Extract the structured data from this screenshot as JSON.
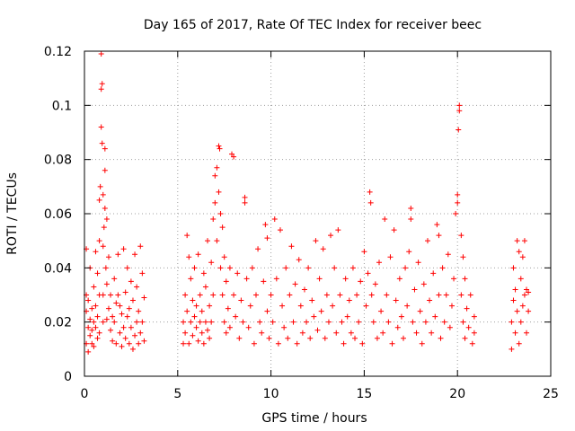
{
  "chart_data": {
    "type": "scatter",
    "title": "Day 165 of 2017, Rate Of TEC Index for receiver beec",
    "xlabel": "GPS time / hours",
    "ylabel": "ROTI / TECUs",
    "xlim": [
      0,
      25
    ],
    "ylim": [
      0,
      0.12
    ],
    "xticks": [
      0,
      5,
      10,
      15,
      20,
      25
    ],
    "xtick_labels": [
      "0",
      "5",
      "10",
      "15",
      "20",
      "25"
    ],
    "yticks": [
      0,
      0.02,
      0.04,
      0.06,
      0.08,
      0.1,
      0.12
    ],
    "ytick_labels": [
      "0",
      "0.02",
      "0.04",
      "0.06",
      "0.08",
      "0.1",
      "0.12"
    ],
    "grid": true,
    "marker": "+",
    "series": [
      {
        "name": "ROTI",
        "color": "#ff0000",
        "points": [
          [
            0.1,
            0.024
          ],
          [
            0.1,
            0.012
          ],
          [
            0.1,
            0.03
          ],
          [
            0.1,
            0.047
          ],
          [
            0.2,
            0.018
          ],
          [
            0.2,
            0.009
          ],
          [
            0.2,
            0.028
          ],
          [
            0.3,
            0.015
          ],
          [
            0.3,
            0.021
          ],
          [
            0.3,
            0.04
          ],
          [
            0.4,
            0.012
          ],
          [
            0.4,
            0.025
          ],
          [
            0.4,
            0.017
          ],
          [
            0.5,
            0.02
          ],
          [
            0.5,
            0.033
          ],
          [
            0.5,
            0.011
          ],
          [
            0.6,
            0.018
          ],
          [
            0.6,
            0.026
          ],
          [
            0.6,
            0.046
          ],
          [
            0.7,
            0.014
          ],
          [
            0.7,
            0.038
          ],
          [
            0.7,
            0.022
          ],
          [
            0.8,
            0.05
          ],
          [
            0.8,
            0.03
          ],
          [
            0.8,
            0.016
          ],
          [
            0.8,
            0.065
          ],
          [
            0.85,
            0.07
          ],
          [
            0.9,
            0.119
          ],
          [
            0.9,
            0.106
          ],
          [
            0.9,
            0.092
          ],
          [
            0.95,
            0.086
          ],
          [
            0.95,
            0.108
          ],
          [
            1.0,
            0.067
          ],
          [
            1.0,
            0.048
          ],
          [
            1.0,
            0.03
          ],
          [
            1.0,
            0.02
          ],
          [
            1.05,
            0.055
          ],
          [
            1.1,
            0.084
          ],
          [
            1.1,
            0.076
          ],
          [
            1.1,
            0.062
          ],
          [
            1.15,
            0.04
          ],
          [
            1.2,
            0.034
          ],
          [
            1.2,
            0.021
          ],
          [
            1.2,
            0.058
          ],
          [
            1.3,
            0.025
          ],
          [
            1.3,
            0.044
          ],
          [
            1.4,
            0.017
          ],
          [
            1.4,
            0.03
          ],
          [
            1.5,
            0.022
          ],
          [
            1.5,
            0.013
          ],
          [
            1.6,
            0.02
          ],
          [
            1.6,
            0.036
          ],
          [
            1.7,
            0.027
          ],
          [
            1.7,
            0.012
          ],
          [
            1.8,
            0.03
          ],
          [
            1.8,
            0.045
          ],
          [
            1.9,
            0.016
          ],
          [
            1.9,
            0.026
          ],
          [
            2.0,
            0.011
          ],
          [
            2.0,
            0.023
          ],
          [
            2.1,
            0.047
          ],
          [
            2.1,
            0.018
          ],
          [
            2.2,
            0.014
          ],
          [
            2.2,
            0.031
          ],
          [
            2.3,
            0.022
          ],
          [
            2.3,
            0.04
          ],
          [
            2.4,
            0.012
          ],
          [
            2.4,
            0.025
          ],
          [
            2.5,
            0.018
          ],
          [
            2.5,
            0.035
          ],
          [
            2.6,
            0.01
          ],
          [
            2.6,
            0.028
          ],
          [
            2.7,
            0.015
          ],
          [
            2.7,
            0.045
          ],
          [
            2.8,
            0.02
          ],
          [
            2.8,
            0.033
          ],
          [
            2.9,
            0.012
          ],
          [
            2.9,
            0.024
          ],
          [
            3.0,
            0.016
          ],
          [
            3.0,
            0.048
          ],
          [
            3.1,
            0.02
          ],
          [
            3.1,
            0.038
          ],
          [
            3.2,
            0.013
          ],
          [
            3.2,
            0.029
          ],
          [
            5.3,
            0.012
          ],
          [
            5.3,
            0.02
          ],
          [
            5.4,
            0.03
          ],
          [
            5.4,
            0.016
          ],
          [
            5.5,
            0.052
          ],
          [
            5.5,
            0.024
          ],
          [
            5.6,
            0.044
          ],
          [
            5.6,
            0.012
          ],
          [
            5.7,
            0.036
          ],
          [
            5.7,
            0.02
          ],
          [
            5.8,
            0.028
          ],
          [
            5.8,
            0.015
          ],
          [
            5.9,
            0.04
          ],
          [
            5.9,
            0.022
          ],
          [
            6.0,
            0.018
          ],
          [
            6.0,
            0.026
          ],
          [
            6.1,
            0.045
          ],
          [
            6.1,
            0.013
          ],
          [
            6.2,
            0.03
          ],
          [
            6.2,
            0.02
          ],
          [
            6.3,
            0.024
          ],
          [
            6.3,
            0.016
          ],
          [
            6.4,
            0.038
          ],
          [
            6.4,
            0.012
          ],
          [
            6.5,
            0.02
          ],
          [
            6.5,
            0.033
          ],
          [
            6.6,
            0.05
          ],
          [
            6.6,
            0.017
          ],
          [
            6.7,
            0.026
          ],
          [
            6.7,
            0.014
          ],
          [
            6.8,
            0.042
          ],
          [
            6.8,
            0.02
          ],
          [
            6.9,
            0.03
          ],
          [
            6.9,
            0.058
          ],
          [
            7.0,
            0.074
          ],
          [
            7.0,
            0.064
          ],
          [
            7.1,
            0.077
          ],
          [
            7.1,
            0.05
          ],
          [
            7.2,
            0.085
          ],
          [
            7.2,
            0.068
          ],
          [
            7.25,
            0.084
          ],
          [
            7.3,
            0.06
          ],
          [
            7.3,
            0.04
          ],
          [
            7.4,
            0.055
          ],
          [
            7.4,
            0.03
          ],
          [
            7.5,
            0.044
          ],
          [
            7.5,
            0.02
          ],
          [
            7.6,
            0.035
          ],
          [
            7.6,
            0.016
          ],
          [
            7.7,
            0.025
          ],
          [
            7.8,
            0.04
          ],
          [
            7.8,
            0.018
          ],
          [
            7.9,
            0.082
          ],
          [
            8.0,
            0.081
          ],
          [
            8.0,
            0.03
          ],
          [
            8.1,
            0.022
          ],
          [
            8.2,
            0.038
          ],
          [
            8.3,
            0.014
          ],
          [
            8.4,
            0.028
          ],
          [
            8.5,
            0.02
          ],
          [
            8.6,
            0.066
          ],
          [
            8.6,
            0.064
          ],
          [
            8.7,
            0.036
          ],
          [
            8.8,
            0.018
          ],
          [
            8.9,
            0.026
          ],
          [
            9.0,
            0.04
          ],
          [
            9.1,
            0.012
          ],
          [
            9.2,
            0.03
          ],
          [
            9.3,
            0.047
          ],
          [
            9.4,
            0.02
          ],
          [
            9.5,
            0.016
          ],
          [
            9.6,
            0.035
          ],
          [
            9.7,
            0.056
          ],
          [
            9.8,
            0.051
          ],
          [
            9.8,
            0.024
          ],
          [
            9.9,
            0.014
          ],
          [
            10.0,
            0.03
          ],
          [
            10.1,
            0.02
          ],
          [
            10.2,
            0.058
          ],
          [
            10.3,
            0.036
          ],
          [
            10.4,
            0.012
          ],
          [
            10.5,
            0.054
          ],
          [
            10.6,
            0.026
          ],
          [
            10.7,
            0.018
          ],
          [
            10.8,
            0.04
          ],
          [
            10.9,
            0.014
          ],
          [
            11.0,
            0.03
          ],
          [
            11.1,
            0.048
          ],
          [
            11.2,
            0.02
          ],
          [
            11.3,
            0.034
          ],
          [
            11.4,
            0.012
          ],
          [
            11.5,
            0.043
          ],
          [
            11.6,
            0.026
          ],
          [
            11.7,
            0.016
          ],
          [
            11.8,
            0.032
          ],
          [
            11.9,
            0.02
          ],
          [
            12.0,
            0.04
          ],
          [
            12.1,
            0.014
          ],
          [
            12.2,
            0.028
          ],
          [
            12.3,
            0.022
          ],
          [
            12.4,
            0.05
          ],
          [
            12.5,
            0.017
          ],
          [
            12.6,
            0.036
          ],
          [
            12.7,
            0.024
          ],
          [
            12.8,
            0.047
          ],
          [
            12.9,
            0.014
          ],
          [
            13.0,
            0.03
          ],
          [
            13.1,
            0.02
          ],
          [
            13.2,
            0.052
          ],
          [
            13.3,
            0.026
          ],
          [
            13.4,
            0.04
          ],
          [
            13.5,
            0.016
          ],
          [
            13.6,
            0.054
          ],
          [
            13.7,
            0.03
          ],
          [
            13.8,
            0.02
          ],
          [
            13.9,
            0.012
          ],
          [
            14.0,
            0.036
          ],
          [
            14.1,
            0.022
          ],
          [
            14.2,
            0.028
          ],
          [
            14.3,
            0.016
          ],
          [
            14.4,
            0.04
          ],
          [
            14.5,
            0.014
          ],
          [
            14.6,
            0.03
          ],
          [
            14.7,
            0.02
          ],
          [
            14.8,
            0.035
          ],
          [
            14.9,
            0.012
          ],
          [
            15.0,
            0.046
          ],
          [
            15.1,
            0.026
          ],
          [
            15.2,
            0.038
          ],
          [
            15.3,
            0.068
          ],
          [
            15.35,
            0.064
          ],
          [
            15.4,
            0.03
          ],
          [
            15.5,
            0.02
          ],
          [
            15.6,
            0.034
          ],
          [
            15.7,
            0.014
          ],
          [
            15.8,
            0.042
          ],
          [
            15.9,
            0.024
          ],
          [
            16.0,
            0.016
          ],
          [
            16.1,
            0.058
          ],
          [
            16.2,
            0.03
          ],
          [
            16.3,
            0.02
          ],
          [
            16.4,
            0.044
          ],
          [
            16.5,
            0.012
          ],
          [
            16.6,
            0.054
          ],
          [
            16.7,
            0.028
          ],
          [
            16.8,
            0.018
          ],
          [
            16.9,
            0.036
          ],
          [
            17.0,
            0.022
          ],
          [
            17.1,
            0.014
          ],
          [
            17.2,
            0.04
          ],
          [
            17.3,
            0.026
          ],
          [
            17.4,
            0.046
          ],
          [
            17.5,
            0.062
          ],
          [
            17.5,
            0.058
          ],
          [
            17.6,
            0.02
          ],
          [
            17.7,
            0.032
          ],
          [
            17.8,
            0.016
          ],
          [
            17.9,
            0.042
          ],
          [
            18.0,
            0.024
          ],
          [
            18.1,
            0.012
          ],
          [
            18.2,
            0.034
          ],
          [
            18.3,
            0.02
          ],
          [
            18.4,
            0.05
          ],
          [
            18.5,
            0.028
          ],
          [
            18.6,
            0.016
          ],
          [
            18.7,
            0.038
          ],
          [
            18.8,
            0.022
          ],
          [
            18.9,
            0.056
          ],
          [
            19.0,
            0.052
          ],
          [
            19.0,
            0.03
          ],
          [
            19.1,
            0.014
          ],
          [
            19.2,
            0.04
          ],
          [
            19.3,
            0.02
          ],
          [
            19.4,
            0.03
          ],
          [
            19.5,
            0.045
          ],
          [
            19.6,
            0.018
          ],
          [
            19.7,
            0.026
          ],
          [
            19.8,
            0.036
          ],
          [
            19.9,
            0.06
          ],
          [
            20.0,
            0.067
          ],
          [
            20.0,
            0.064
          ],
          [
            20.05,
            0.091
          ],
          [
            20.1,
            0.1
          ],
          [
            20.1,
            0.098
          ],
          [
            20.2,
            0.052
          ],
          [
            20.2,
            0.03
          ],
          [
            20.3,
            0.044
          ],
          [
            20.3,
            0.02
          ],
          [
            20.4,
            0.036
          ],
          [
            20.4,
            0.014
          ],
          [
            20.5,
            0.025
          ],
          [
            20.6,
            0.018
          ],
          [
            20.7,
            0.03
          ],
          [
            20.8,
            0.012
          ],
          [
            20.9,
            0.022
          ],
          [
            20.9,
            0.016
          ],
          [
            22.9,
            0.01
          ],
          [
            22.9,
            0.02
          ],
          [
            23.0,
            0.04
          ],
          [
            23.0,
            0.028
          ],
          [
            23.1,
            0.016
          ],
          [
            23.1,
            0.032
          ],
          [
            23.2,
            0.05
          ],
          [
            23.2,
            0.024
          ],
          [
            23.3,
            0.046
          ],
          [
            23.3,
            0.012
          ],
          [
            23.4,
            0.036
          ],
          [
            23.4,
            0.02
          ],
          [
            23.5,
            0.044
          ],
          [
            23.5,
            0.026
          ],
          [
            23.6,
            0.05
          ],
          [
            23.6,
            0.03
          ],
          [
            23.7,
            0.032
          ],
          [
            23.7,
            0.016
          ],
          [
            23.8,
            0.024
          ],
          [
            23.8,
            0.031
          ]
        ]
      }
    ]
  }
}
